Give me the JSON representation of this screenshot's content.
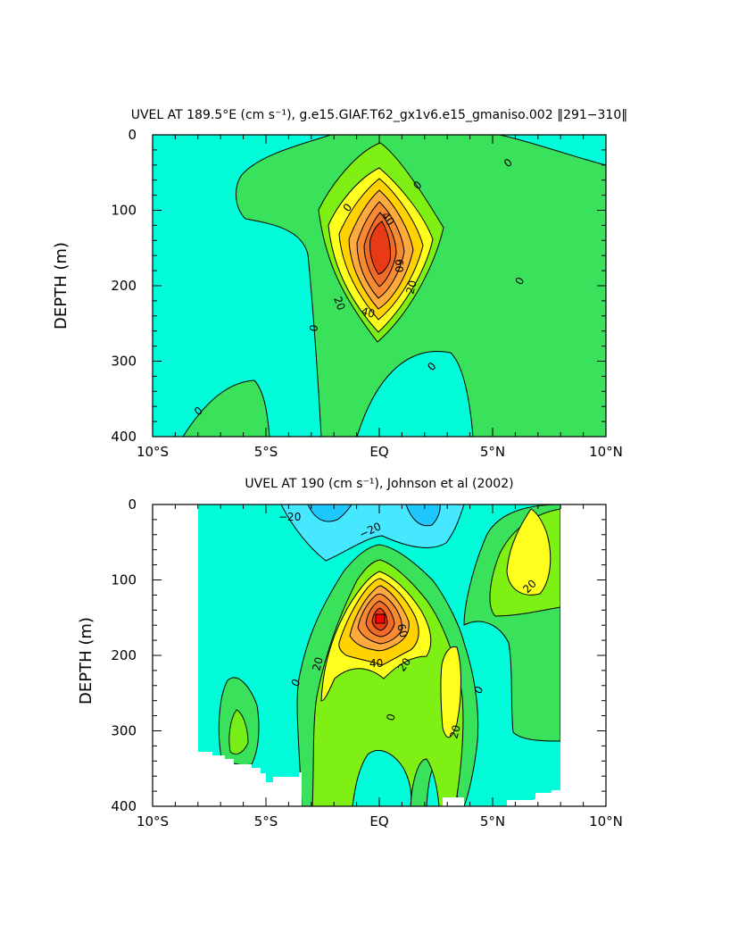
{
  "chart_data": [
    {
      "type": "contour",
      "title": "UVEL AT 189.5°E (cm s⁻¹), g.e15.GIAF.T62_gx1v6.e15_gmaniso.002 ‖291−310‖",
      "xlabel": "",
      "ylabel": "DEPTH (m)",
      "xlim": [
        -10,
        10
      ],
      "ylim": [
        400,
        0
      ],
      "x_ticks": [
        "10°S",
        "5°S",
        "EQ",
        "5°N",
        "10°N"
      ],
      "y_ticks": [
        "0",
        "100",
        "200",
        "300",
        "400"
      ],
      "contour_interval": 10,
      "contour_labels": [
        "0",
        "0",
        "0",
        "0",
        "0",
        "0",
        "0",
        "20",
        "20",
        "40",
        "40",
        "60"
      ],
      "core": {
        "lat": 0,
        "depth_m": 150,
        "max_speed": 80
      }
    },
    {
      "type": "contour",
      "title": "UVEL AT 190 (cm s⁻¹), Johnson et al (2002)",
      "xlabel": "",
      "ylabel": "DEPTH (m)",
      "xlim": [
        -10,
        10
      ],
      "ylim": [
        400,
        0
      ],
      "x_ticks": [
        "10°S",
        "5°S",
        "EQ",
        "5°N",
        "10°N"
      ],
      "y_ticks": [
        "0",
        "100",
        "200",
        "300",
        "400"
      ],
      "data_lat_range": [
        -8,
        8
      ],
      "contour_interval": 10,
      "contour_labels": [
        "−20",
        "−20",
        "0",
        "0",
        "0",
        "20",
        "20",
        "20",
        "20",
        "40",
        "60"
      ],
      "core": {
        "lat": 0,
        "depth_m": 150,
        "max_speed": 90
      }
    }
  ],
  "colors": {
    "below_minus20": "#1ec8ff",
    "minus20_to_minus10": "#45e8ff",
    "minus10_to_0": "#00fcd8",
    "0_to_10": "#3ae15a",
    "10_to_20": "#7ef014",
    "20_to_30": "#ffff1e",
    "30_to_40": "#ffd200",
    "40_to_50": "#ffaa3c",
    "50_to_60": "#f88a32",
    "60_to_70": "#f06a28",
    "above_70": "#e83a14"
  }
}
